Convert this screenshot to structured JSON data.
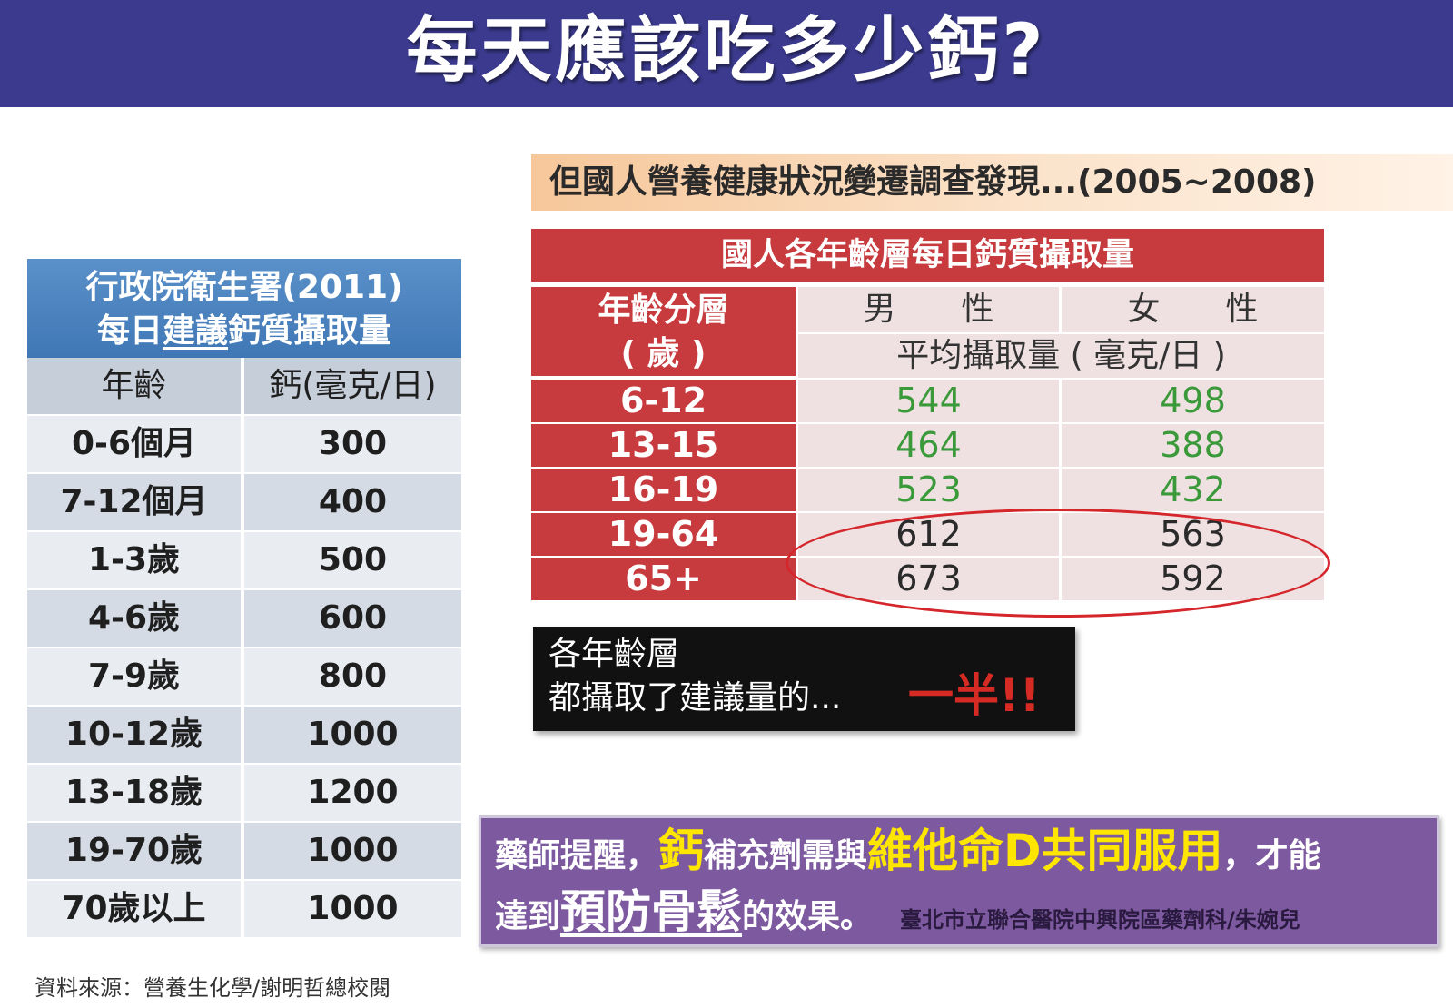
{
  "title": "每天應該吃多少鈣?",
  "left_table": {
    "header_line1": "行政院衛生署(2011)",
    "header_line2_pre": "每日",
    "header_line2_ul": "建議",
    "header_line2_post": "鈣質攝取量",
    "col_age": "年齡",
    "col_calcium": "鈣(毫克/日)",
    "rows": [
      {
        "age": "0-6個月",
        "value": "300"
      },
      {
        "age": "7-12個月",
        "value": "400"
      },
      {
        "age": "1-3歲",
        "value": "500"
      },
      {
        "age": "4-6歲",
        "value": "600"
      },
      {
        "age": "7-9歲",
        "value": "800"
      },
      {
        "age": "10-12歲",
        "value": "1000"
      },
      {
        "age": "13-18歲",
        "value": "1200"
      },
      {
        "age": "19-70歲",
        "value": "1000"
      },
      {
        "age": "70歲以上",
        "value": "1000"
      }
    ]
  },
  "source": "資料來源：營養生化學/謝明哲總校閱",
  "survey_banner": "但國人營養健康狀況變遷調查發現...(2005~2008)",
  "right_table": {
    "title": "國人各年齡層每日鈣質攝取量",
    "age_header_line1": "年齡分層",
    "age_header_line2": "( 歲 )",
    "male": "男　　性",
    "female": "女　　性",
    "unit": "平均攝取量 ( 毫克/日 )",
    "rows": [
      {
        "age": "6-12",
        "male": "544",
        "female": "498"
      },
      {
        "age": "13-15",
        "male": "464",
        "female": "388"
      },
      {
        "age": "16-19",
        "male": "523",
        "female": "432"
      },
      {
        "age": "19-64",
        "male": "612",
        "female": "563"
      },
      {
        "age": "65+",
        "male": "673",
        "female": "592"
      }
    ]
  },
  "note": {
    "line1": "各年齡層",
    "line2": "都攝取了建議量的...",
    "emphasis": "一半!!"
  },
  "pharmacist": {
    "p1": "藥師提醒，",
    "calcium": "鈣",
    "p2": "補充劑需與",
    "vitd": "維他命D共同服用",
    "p3": "，才能",
    "p4": "達到",
    "prevent": "預防骨鬆",
    "p5": "的效果。",
    "credit": "臺北市立聯合醫院中興院區藥劑科/朱婉兒"
  }
}
